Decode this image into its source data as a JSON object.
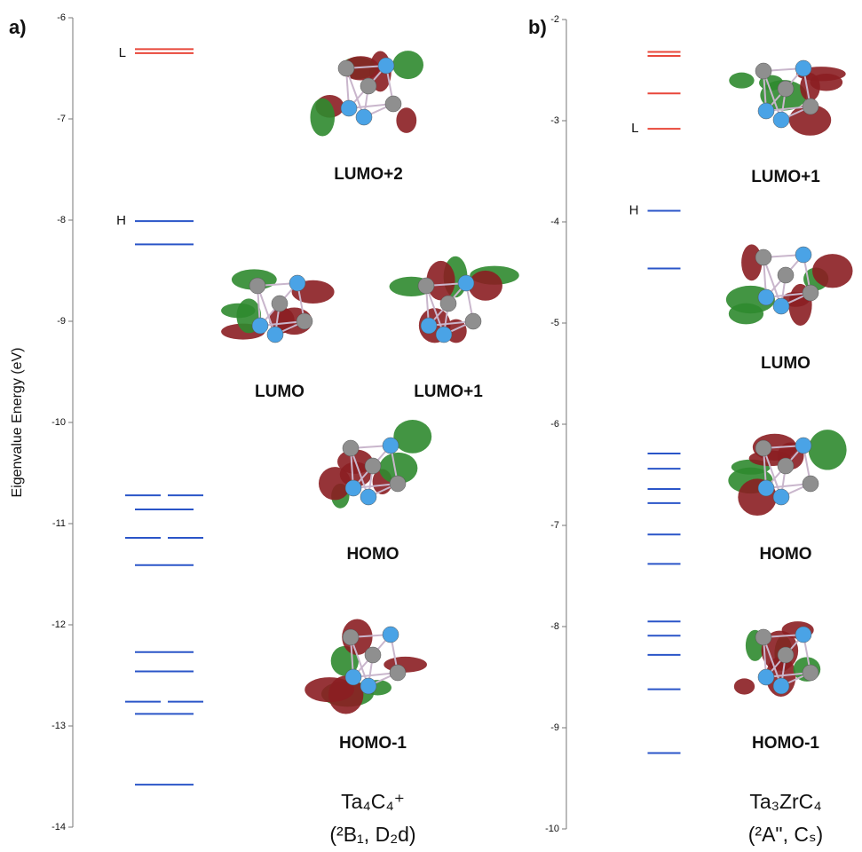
{
  "chart_data": [
    {
      "type": "levels",
      "panel": "a)",
      "ylabel": "Eigenvalue Energy (eV)",
      "ylim": [
        -14,
        -6
      ],
      "yticks": [
        -6,
        -7,
        -8,
        -9,
        -10,
        -11,
        -12,
        -13,
        -14
      ],
      "series": [
        {
          "color": "#e8473a",
          "values": [
            -6.31,
            -6.35
          ]
        },
        {
          "color": "#2a55c8",
          "values": [
            -8.01,
            -8.24,
            -10.72,
            -10.72,
            -10.86,
            -11.14,
            -11.14,
            -11.41,
            -12.27,
            -12.46,
            -12.76,
            -12.76,
            -12.88,
            -13.58
          ]
        }
      ],
      "annotations": [
        {
          "text": "L",
          "value": -6.35
        },
        {
          "text": "H",
          "value": -8.01
        }
      ],
      "orbitals": [
        "LUMO+2",
        "LUMO",
        "LUMO+1",
        "HOMO",
        "HOMO-1"
      ],
      "title": "Ta₄C₄⁺",
      "subtitle": "(²B₁, D₂d)"
    },
    {
      "type": "levels",
      "panel": "b)",
      "ylim": [
        -10,
        -2
      ],
      "yticks": [
        -2,
        -3,
        -4,
        -5,
        -6,
        -7,
        -8,
        -9,
        -10
      ],
      "series": [
        {
          "color": "#e8473a",
          "values": [
            -2.32,
            -2.36,
            -2.73,
            -3.08
          ]
        },
        {
          "color": "#2a55c8",
          "values": [
            -3.89,
            -4.46,
            -6.29,
            -6.44,
            -6.64,
            -6.78,
            -7.09,
            -7.38,
            -7.95,
            -8.09,
            -8.28,
            -8.62,
            -9.25
          ]
        }
      ],
      "annotations": [
        {
          "text": "L",
          "value": -3.08
        },
        {
          "text": "H",
          "value": -3.89
        }
      ],
      "orbitals": [
        "LUMO+1",
        "LUMO",
        "HOMO",
        "HOMO-1"
      ],
      "title": "Ta₃ZrC₄",
      "subtitle": "(²A\", Cₛ)"
    }
  ]
}
